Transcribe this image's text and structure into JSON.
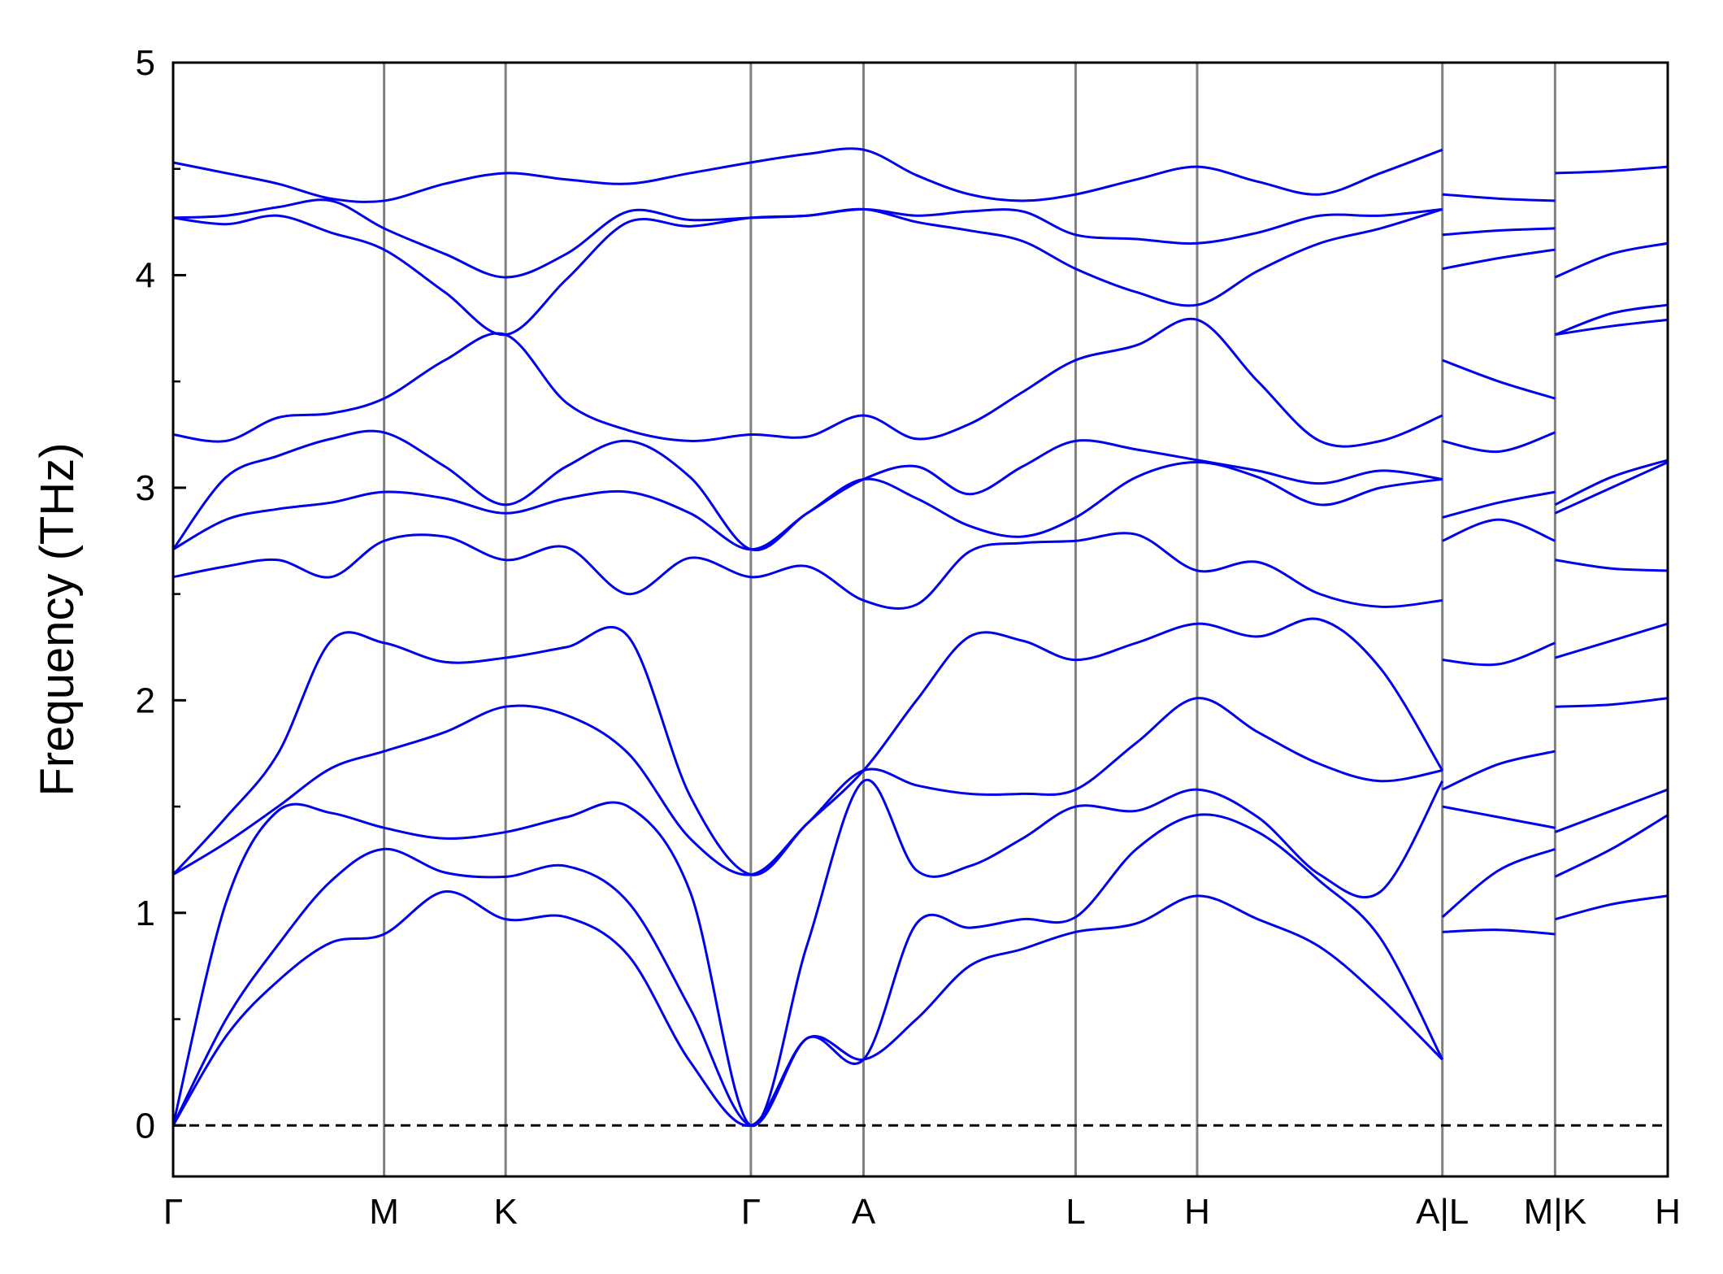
{
  "chart_data": {
    "type": "line",
    "y_label": "Frequency (THz)",
    "color": "#0000ee",
    "grid": true,
    "zero_line": true,
    "xlim": [
      0,
      1353
    ],
    "ylim": [
      -0.24,
      5
    ],
    "xticks": [
      {
        "value": 0,
        "label": "Γ"
      },
      {
        "value": 191,
        "label": "M"
      },
      {
        "value": 301,
        "label": "K"
      },
      {
        "value": 523,
        "label": "Γ"
      },
      {
        "value": 625,
        "label": "A"
      },
      {
        "value": 817,
        "label": "L"
      },
      {
        "value": 927,
        "label": "H"
      },
      {
        "value": 1149,
        "label": "A|L"
      },
      {
        "value": 1251,
        "label": "M|K"
      },
      {
        "value": 1353,
        "label": "H"
      }
    ],
    "yticks": [
      0,
      1,
      2,
      3,
      4,
      5
    ],
    "y_minor_ticks": [
      0.5,
      1.5,
      2.5,
      3.5,
      4.5
    ],
    "x": [
      0,
      48,
      95,
      143,
      191,
      246,
      301,
      356,
      412,
      468,
      523,
      574,
      625,
      673,
      721,
      769,
      817,
      872,
      927,
      982,
      1038,
      1093,
      1149,
      null,
      1149,
      1200,
      1251,
      null,
      1251,
      1302,
      1353
    ],
    "series": [
      {
        "values": [
          0,
          0.42,
          0.68,
          0.86,
          0.9,
          1.1,
          0.97,
          0.98,
          0.8,
          0.3,
          0,
          0.41,
          0.31,
          0.5,
          0.75,
          0.83,
          0.91,
          0.95,
          1.08,
          0.97,
          0.84,
          0.6,
          0.31,
          null,
          0.91,
          0.92,
          0.9,
          null,
          0.97,
          1.04,
          1.08
        ]
      },
      {
        "values": [
          0,
          0.5,
          0.85,
          1.15,
          1.3,
          1.19,
          1.17,
          1.22,
          1.05,
          0.55,
          0,
          0.41,
          0.31,
          0.95,
          0.93,
          0.97,
          0.98,
          1.3,
          1.46,
          1.38,
          1.15,
          0.88,
          0.31,
          null,
          0.98,
          1.2,
          1.3,
          null,
          1.17,
          1.3,
          1.46
        ]
      },
      {
        "values": [
          0,
          1.05,
          1.48,
          1.47,
          1.4,
          1.35,
          1.38,
          1.45,
          1.5,
          1.1,
          0,
          0.85,
          1.62,
          1.2,
          1.22,
          1.35,
          1.5,
          1.48,
          1.58,
          1.45,
          1.18,
          1.1,
          1.62,
          null,
          1.5,
          1.45,
          1.4,
          null,
          1.38,
          1.48,
          1.58
        ]
      },
      {
        "values": [
          1.18,
          1.33,
          1.5,
          1.68,
          1.76,
          1.85,
          1.97,
          1.93,
          1.75,
          1.35,
          1.18,
          1.42,
          1.67,
          1.6,
          1.56,
          1.56,
          1.58,
          1.8,
          2.01,
          1.85,
          1.7,
          1.62,
          1.67,
          null,
          1.58,
          1.7,
          1.76,
          null,
          1.97,
          1.98,
          2.01
        ]
      },
      {
        "values": [
          1.18,
          1.45,
          1.75,
          2.28,
          2.27,
          2.18,
          2.2,
          2.25,
          2.3,
          1.55,
          1.18,
          1.42,
          1.67,
          2.0,
          2.3,
          2.28,
          2.19,
          2.27,
          2.36,
          2.3,
          2.38,
          2.15,
          1.67,
          null,
          2.19,
          2.17,
          2.27,
          null,
          2.2,
          2.28,
          2.36
        ]
      },
      {
        "values": [
          2.58,
          2.63,
          2.66,
          2.58,
          2.75,
          2.77,
          2.66,
          2.72,
          2.5,
          2.67,
          2.58,
          2.63,
          2.47,
          2.45,
          2.7,
          2.74,
          2.75,
          2.78,
          2.61,
          2.65,
          2.5,
          2.44,
          2.47,
          null,
          2.75,
          2.85,
          2.75,
          null,
          2.66,
          2.62,
          2.61
        ]
      },
      {
        "values": [
          2.71,
          2.85,
          2.9,
          2.93,
          2.98,
          2.95,
          2.88,
          2.95,
          2.98,
          2.88,
          2.71,
          2.88,
          3.04,
          2.95,
          2.82,
          2.77,
          2.86,
          3.05,
          3.12,
          3.05,
          2.92,
          3.0,
          3.04,
          null,
          2.86,
          2.93,
          2.98,
          null,
          2.88,
          3.0,
          3.12
        ]
      },
      {
        "values": [
          2.71,
          3.05,
          3.15,
          3.23,
          3.26,
          3.1,
          2.92,
          3.1,
          3.22,
          3.05,
          2.71,
          2.88,
          3.04,
          3.1,
          2.97,
          3.1,
          3.22,
          3.18,
          3.13,
          3.08,
          3.02,
          3.08,
          3.04,
          null,
          3.22,
          3.17,
          3.26,
          null,
          2.92,
          3.05,
          3.13
        ]
      },
      {
        "values": [
          3.25,
          3.22,
          3.33,
          3.35,
          3.42,
          3.6,
          3.72,
          3.4,
          3.27,
          3.22,
          3.25,
          3.24,
          3.34,
          3.23,
          3.3,
          3.45,
          3.6,
          3.67,
          3.79,
          3.5,
          3.22,
          3.22,
          3.34,
          null,
          3.6,
          3.5,
          3.42,
          null,
          3.72,
          3.76,
          3.79
        ]
      },
      {
        "values": [
          4.27,
          4.24,
          4.28,
          4.2,
          4.12,
          3.92,
          3.72,
          3.98,
          4.25,
          4.23,
          4.27,
          4.28,
          4.31,
          4.25,
          4.21,
          4.16,
          4.03,
          3.92,
          3.86,
          4.02,
          4.15,
          4.22,
          4.31,
          null,
          4.03,
          4.08,
          4.12,
          null,
          3.72,
          3.82,
          3.86
        ]
      },
      {
        "values": [
          4.27,
          4.28,
          4.32,
          4.35,
          4.22,
          4.1,
          3.99,
          4.1,
          4.3,
          4.26,
          4.27,
          4.28,
          4.31,
          4.28,
          4.3,
          4.3,
          4.19,
          4.17,
          4.15,
          4.2,
          4.28,
          4.28,
          4.31,
          null,
          4.19,
          4.21,
          4.22,
          null,
          3.99,
          4.1,
          4.15
        ]
      },
      {
        "values": [
          4.53,
          4.48,
          4.43,
          4.36,
          4.35,
          4.43,
          4.48,
          4.45,
          4.43,
          4.48,
          4.53,
          4.57,
          4.59,
          4.47,
          4.38,
          4.35,
          4.38,
          4.45,
          4.51,
          4.44,
          4.38,
          4.48,
          4.59,
          null,
          4.38,
          4.36,
          4.35,
          null,
          4.48,
          4.49,
          4.51
        ]
      }
    ]
  }
}
